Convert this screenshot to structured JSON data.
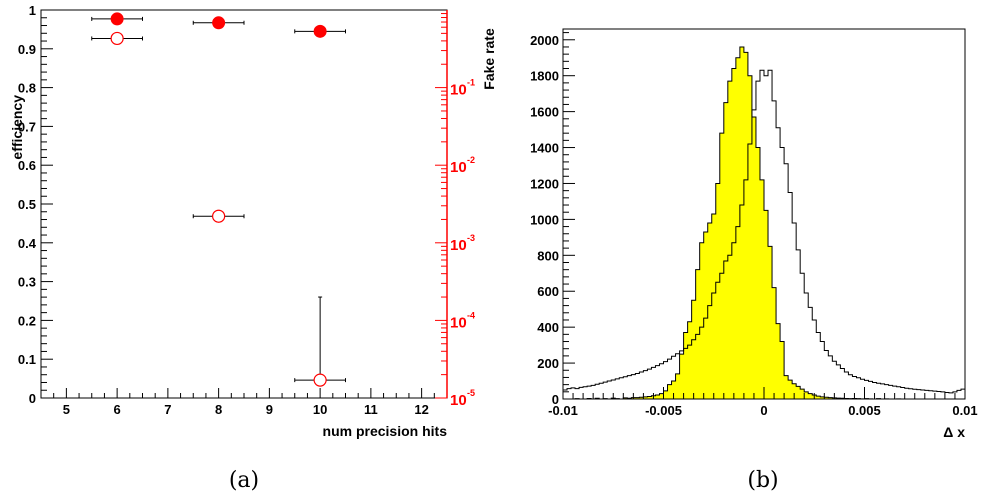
{
  "captions": [
    "(a)",
    "(b)"
  ],
  "chart_data": [
    {
      "type": "scatter",
      "xlabel": "num precision hits",
      "ylabel": "efficiency",
      "y2label": "Fake rate",
      "xlim": [
        4.5,
        12.5
      ],
      "ylim": [
        0,
        1
      ],
      "y2lim": [
        1e-05,
        1
      ],
      "y2scale": "log",
      "grid": false,
      "x_ticks": [
        "5",
        "6",
        "7",
        "8",
        "9",
        "10",
        "11",
        "12"
      ],
      "y_ticks": [
        "0",
        "0.1",
        "0.2",
        "0.3",
        "0.4",
        "0.5",
        "0.6",
        "0.7",
        "0.8",
        "0.9",
        "1"
      ],
      "y2_ticks": [
        {
          "base": "10",
          "exp": "-1",
          "value": 0.1
        },
        {
          "base": "10",
          "exp": "-2",
          "value": 0.01
        },
        {
          "base": "10",
          "exp": "-3",
          "value": 0.001
        },
        {
          "base": "10",
          "exp": "-4",
          "value": 0.0001
        },
        {
          "base": "10",
          "exp": "-5",
          "value": 1e-05
        }
      ],
      "series": [
        {
          "marker": "filled-circle",
          "color": "#ff0000",
          "points": [
            {
              "x": 6,
              "y": 0.977,
              "xerr": 0.5
            },
            {
              "x": 8,
              "y": 0.967,
              "xerr": 0.5
            },
            {
              "x": 10,
              "y": 0.945,
              "xerr": 0.5
            }
          ]
        },
        {
          "marker": "open-circle",
          "color": "#ff0000",
          "axis": "y2",
          "points": [
            {
              "x": 6,
              "y": 0.43,
              "xerr": 0.5
            },
            {
              "x": 8,
              "y": 0.0022,
              "xerr": 0.5
            },
            {
              "x": 10,
              "y": 1.7e-05,
              "xerr": 0.5,
              "yerr_high": 0.0002
            }
          ]
        }
      ]
    },
    {
      "type": "histogram",
      "xlabel": "Δ x",
      "xlim": [
        -0.01,
        0.01
      ],
      "ylim": [
        0,
        2060
      ],
      "grid": false,
      "x_ticks": [
        "-0.01",
        "-0.005",
        "0",
        "0.005",
        "0.01"
      ],
      "y_ticks": [
        "0",
        "200",
        "400",
        "600",
        "800",
        "1000",
        "1200",
        "1400",
        "1600",
        "1800",
        "2000"
      ],
      "bins": 100,
      "series": [
        {
          "style": "outline",
          "color": "#000000",
          "values": [
            50,
            58,
            62,
            58,
            65,
            68,
            72,
            76,
            82,
            88,
            94,
            100,
            106,
            112,
            118,
            124,
            130,
            136,
            142,
            150,
            158,
            166,
            176,
            186,
            196,
            208,
            222,
            238,
            252,
            268,
            282,
            300,
            330,
            360,
            400,
            450,
            520,
            590,
            650,
            700,
            768,
            800,
            870,
            960,
            1080,
            1220,
            1420,
            1610,
            1770,
            1830,
            1800,
            1830,
            1660,
            1510,
            1400,
            1310,
            1150,
            980,
            830,
            700,
            590,
            510,
            440,
            370,
            320,
            270,
            240,
            210,
            190,
            170,
            150,
            135,
            125,
            118,
            110,
            104,
            98,
            92,
            88,
            84,
            80,
            76,
            72,
            68,
            64,
            60,
            57,
            54,
            52,
            50,
            48,
            46,
            44,
            42,
            40,
            36,
            34,
            40,
            48,
            55
          ]
        },
        {
          "style": "filled",
          "color": "#000000",
          "fill": "#ffff00",
          "values": [
            0,
            0,
            0,
            2,
            0,
            0,
            3,
            0,
            4,
            0,
            2,
            0,
            5,
            2,
            0,
            6,
            4,
            8,
            8,
            10,
            12,
            14,
            18,
            22,
            30,
            45,
            80,
            100,
            140,
            250,
            370,
            430,
            550,
            720,
            870,
            930,
            980,
            1030,
            1200,
            1480,
            1650,
            1770,
            1840,
            1900,
            1960,
            1930,
            1800,
            1570,
            1400,
            1220,
            1050,
            850,
            620,
            420,
            320,
            130,
            105,
            85,
            70,
            55,
            40,
            30,
            22,
            16,
            12,
            10,
            8,
            6,
            5,
            4,
            3,
            2,
            3,
            2,
            1,
            2,
            1,
            0,
            2,
            0,
            1,
            0,
            0,
            1,
            0,
            0,
            0,
            0,
            0,
            0,
            0,
            0,
            0,
            0,
            0,
            0,
            0,
            0,
            0,
            0
          ]
        }
      ]
    }
  ]
}
